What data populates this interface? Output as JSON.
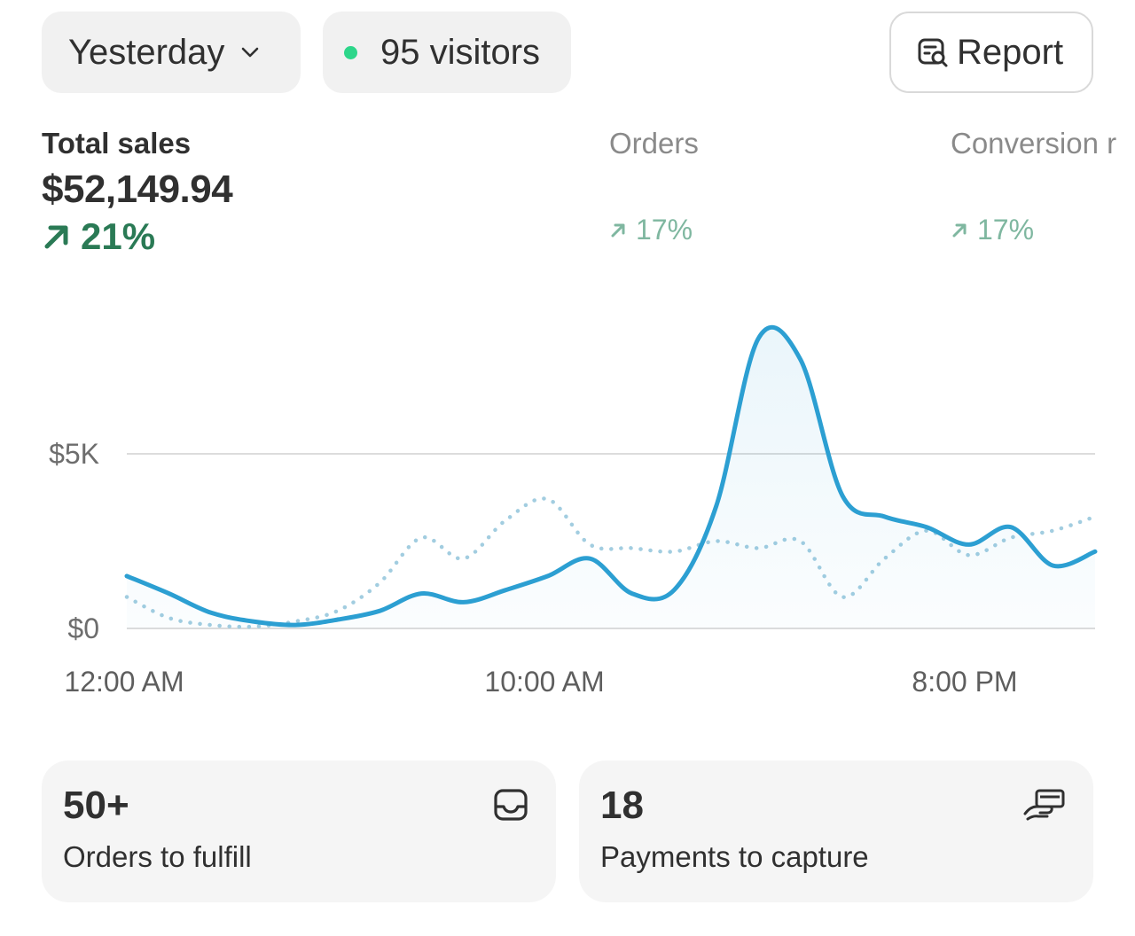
{
  "filters": {
    "date_range": "Yesterday",
    "visitors": "95 visitors",
    "report_label": "Report"
  },
  "metrics": {
    "total_sales": {
      "label": "Total sales",
      "value": "$52,149.94",
      "change": "21%"
    },
    "orders": {
      "label": "Orders",
      "change": "17%"
    },
    "conversion": {
      "label": "Conversion r",
      "change": "17%"
    }
  },
  "chart_data": {
    "type": "line",
    "x_labels": [
      "12:00 AM",
      "10:00 AM",
      "8:00 PM"
    ],
    "y_ticks": [
      "$5K",
      "$0"
    ],
    "ylim": [
      0,
      9000
    ],
    "x": [
      0,
      1,
      2,
      3,
      4,
      5,
      6,
      7,
      8,
      9,
      10,
      11,
      12,
      13,
      14,
      15,
      16,
      17,
      18,
      19,
      20,
      21,
      22,
      23
    ],
    "series": [
      {
        "style": "solid",
        "values": [
          1500,
          1000,
          450,
          200,
          100,
          250,
          500,
          1000,
          750,
          1100,
          1500,
          2000,
          1000,
          1100,
          3500,
          8300,
          7700,
          3800,
          3200,
          2900,
          2400,
          2900,
          1800,
          2200
        ]
      },
      {
        "style": "dotted",
        "values": [
          900,
          300,
          100,
          50,
          200,
          500,
          1300,
          2600,
          2000,
          3100,
          3700,
          2400,
          2300,
          2200,
          2500,
          2300,
          2500,
          900,
          2000,
          2800,
          2100,
          2600,
          2800,
          3200
        ]
      }
    ],
    "grid": true,
    "colors": {
      "current": "#2c9fd2",
      "comparison": "#a2cde0"
    }
  },
  "cards": {
    "fulfill": {
      "count": "50+",
      "label": "Orders to fulfill",
      "icon": "inbox-icon"
    },
    "capture": {
      "count": "18",
      "label": "Payments to capture",
      "icon": "hand-payment-icon"
    }
  }
}
